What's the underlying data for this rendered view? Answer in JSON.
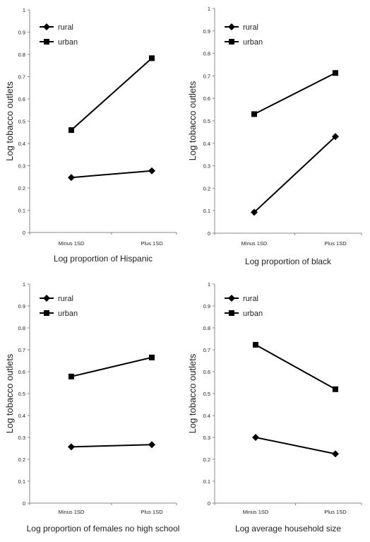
{
  "chart_data": [
    {
      "type": "line",
      "categories": [
        "Minus 1SD",
        "Plus 1SD"
      ],
      "series": [
        {
          "name": "rural",
          "values": [
            0.247,
            0.277
          ]
        },
        {
          "name": "urban",
          "values": [
            0.46,
            0.783
          ]
        }
      ],
      "xlabel": "Log proportion of Hispanic",
      "ylabel": "Log tobacco outlets",
      "ylim": [
        0,
        1
      ],
      "yticks": [
        "0",
        "0.1",
        "0.2",
        "0.3",
        "0.4",
        "0.5",
        "0.6",
        "0.7",
        "0.8",
        "0.9",
        "1"
      ],
      "legend": "top-left",
      "grid": false
    },
    {
      "type": "line",
      "categories": [
        "Minus 1SD",
        "Plus 1SD"
      ],
      "series": [
        {
          "name": "rural",
          "values": [
            0.093,
            0.43
          ]
        },
        {
          "name": "urban",
          "values": [
            0.53,
            0.713
          ]
        }
      ],
      "xlabel": "Log proportion of black",
      "ylabel": "Log tobacco outlets",
      "ylim": [
        0,
        1
      ],
      "yticks": [
        "0",
        "0.1",
        "0.2",
        "0.3",
        "0.4",
        "0.5",
        "0.6",
        "0.7",
        "0.8",
        "0.9",
        "1"
      ],
      "legend": "top-left",
      "grid": false
    },
    {
      "type": "line",
      "categories": [
        "Minus 1SD",
        "Plus 1SD"
      ],
      "series": [
        {
          "name": "rural",
          "values": [
            0.257,
            0.267
          ]
        },
        {
          "name": "urban",
          "values": [
            0.578,
            0.665
          ]
        }
      ],
      "xlabel": "Log proportion of females no high school",
      "ylabel": "Log tobacco outlets",
      "ylim": [
        0,
        1
      ],
      "yticks": [
        "0",
        "0.1",
        "0.2",
        "0.3",
        "0.4",
        "0.5",
        "0.6",
        "0.7",
        "0.8",
        "0.9",
        "1"
      ],
      "legend": "top-left",
      "grid": false
    },
    {
      "type": "line",
      "categories": [
        "Minus 1SD",
        "Plus 1SD"
      ],
      "series": [
        {
          "name": "rural",
          "values": [
            0.3,
            0.225
          ]
        },
        {
          "name": "urban",
          "values": [
            0.723,
            0.52
          ]
        }
      ],
      "xlabel": "Log average household size",
      "ylabel": "Log tobacco outlets",
      "ylim": [
        0,
        1
      ],
      "yticks": [
        "0",
        "0.1",
        "0.2",
        "0.3",
        "0.4",
        "0.5",
        "0.6",
        "0.7",
        "0.8",
        "0.9",
        "1"
      ],
      "legend": "top-left",
      "grid": false
    }
  ],
  "colors": {
    "line": "#000000",
    "axis": "#888888",
    "text": "#222222"
  },
  "markers": {
    "rural": "diamond",
    "urban": "square"
  }
}
